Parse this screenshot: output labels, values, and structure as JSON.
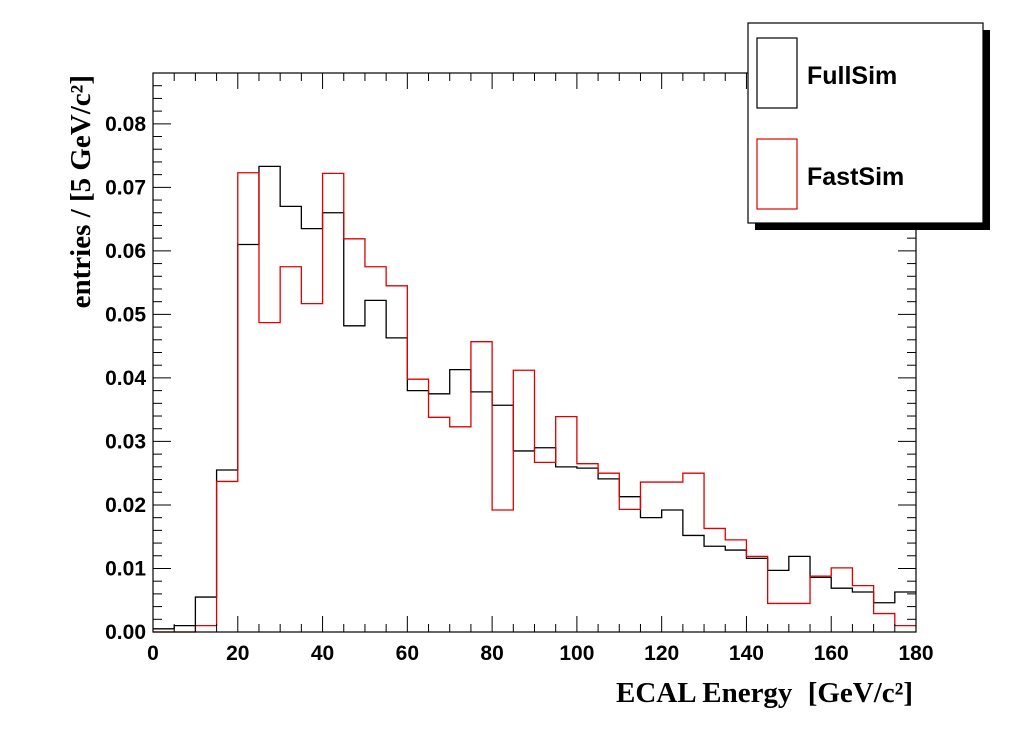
{
  "chart_data": {
    "type": "histogram-step",
    "xlabel": "ECAL Energy",
    "xlabel_unit": "[GeV/c²]",
    "ylabel": "entries / [5 GeV/c²]",
    "xlim": [
      0,
      180
    ],
    "ylim": [
      0,
      0.088
    ],
    "bin_width": 5,
    "x_ticks": [
      "0",
      "20",
      "40",
      "60",
      "80",
      "100",
      "120",
      "140",
      "160",
      "180"
    ],
    "y_ticks": [
      "0.00",
      "0.01",
      "0.02",
      "0.03",
      "0.04",
      "0.05",
      "0.06",
      "0.07",
      "0.08"
    ],
    "grid": false,
    "legend_position": "top-right",
    "series": [
      {
        "name": "FullSim",
        "color": "#000000",
        "values": [
          0.0005,
          0.001,
          0.0055,
          0.0255,
          0.061,
          0.0733,
          0.067,
          0.0635,
          0.066,
          0.0482,
          0.0522,
          0.0463,
          0.038,
          0.0375,
          0.0413,
          0.0378,
          0.0357,
          0.0285,
          0.029,
          0.026,
          0.0258,
          0.0241,
          0.0213,
          0.018,
          0.0192,
          0.0152,
          0.0135,
          0.0129,
          0.0116,
          0.0097,
          0.0119,
          0.0086,
          0.0069,
          0.0063,
          0.0046,
          0.0063
        ]
      },
      {
        "name": "FastSim",
        "color": "#e00000",
        "values": [
          0.0,
          0.0,
          0.001,
          0.0237,
          0.0723,
          0.0487,
          0.0575,
          0.0517,
          0.0722,
          0.0619,
          0.0575,
          0.0545,
          0.0398,
          0.0338,
          0.0323,
          0.0457,
          0.0192,
          0.0412,
          0.0267,
          0.0339,
          0.0265,
          0.025,
          0.0193,
          0.0236,
          0.0236,
          0.025,
          0.0163,
          0.0145,
          0.0119,
          0.0045,
          0.0045,
          0.0088,
          0.0101,
          0.0073,
          0.0029,
          0.001
        ]
      }
    ]
  }
}
